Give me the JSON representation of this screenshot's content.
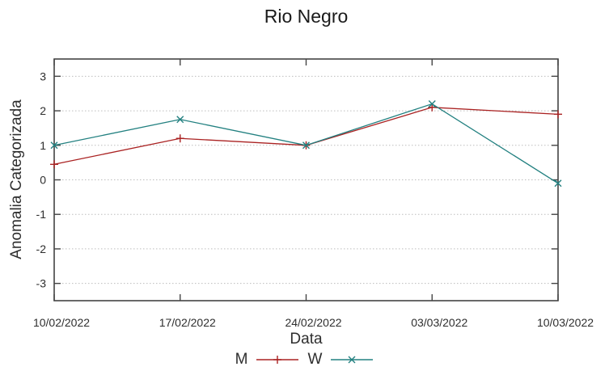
{
  "chart_data": {
    "type": "line",
    "title": "Rio Negro",
    "xlabel": "Data",
    "ylabel": "Anomalia Categorizada",
    "categories": [
      "10/02/2022",
      "17/02/2022",
      "24/02/2022",
      "03/03/2022",
      "10/03/2022"
    ],
    "series": [
      {
        "name": "M",
        "color": "#aa2222",
        "marker": "plus",
        "values": [
          0.45,
          1.2,
          1.0,
          2.1,
          1.9
        ]
      },
      {
        "name": "W",
        "color": "#228080",
        "marker": "cross",
        "values": [
          1.0,
          1.75,
          1.0,
          2.2,
          -0.1
        ]
      }
    ],
    "ylim": [
      -3.5,
      3.5
    ],
    "yticks": [
      3,
      2,
      1,
      0,
      -1,
      -2,
      -3
    ],
    "grid": "horizontal-dotted",
    "legend_position": "bottom",
    "style": {
      "axis_color": "#444444",
      "grid_color": "#bdbdbd",
      "text_color": "#2e2e2e",
      "background": "#ffffff"
    }
  }
}
